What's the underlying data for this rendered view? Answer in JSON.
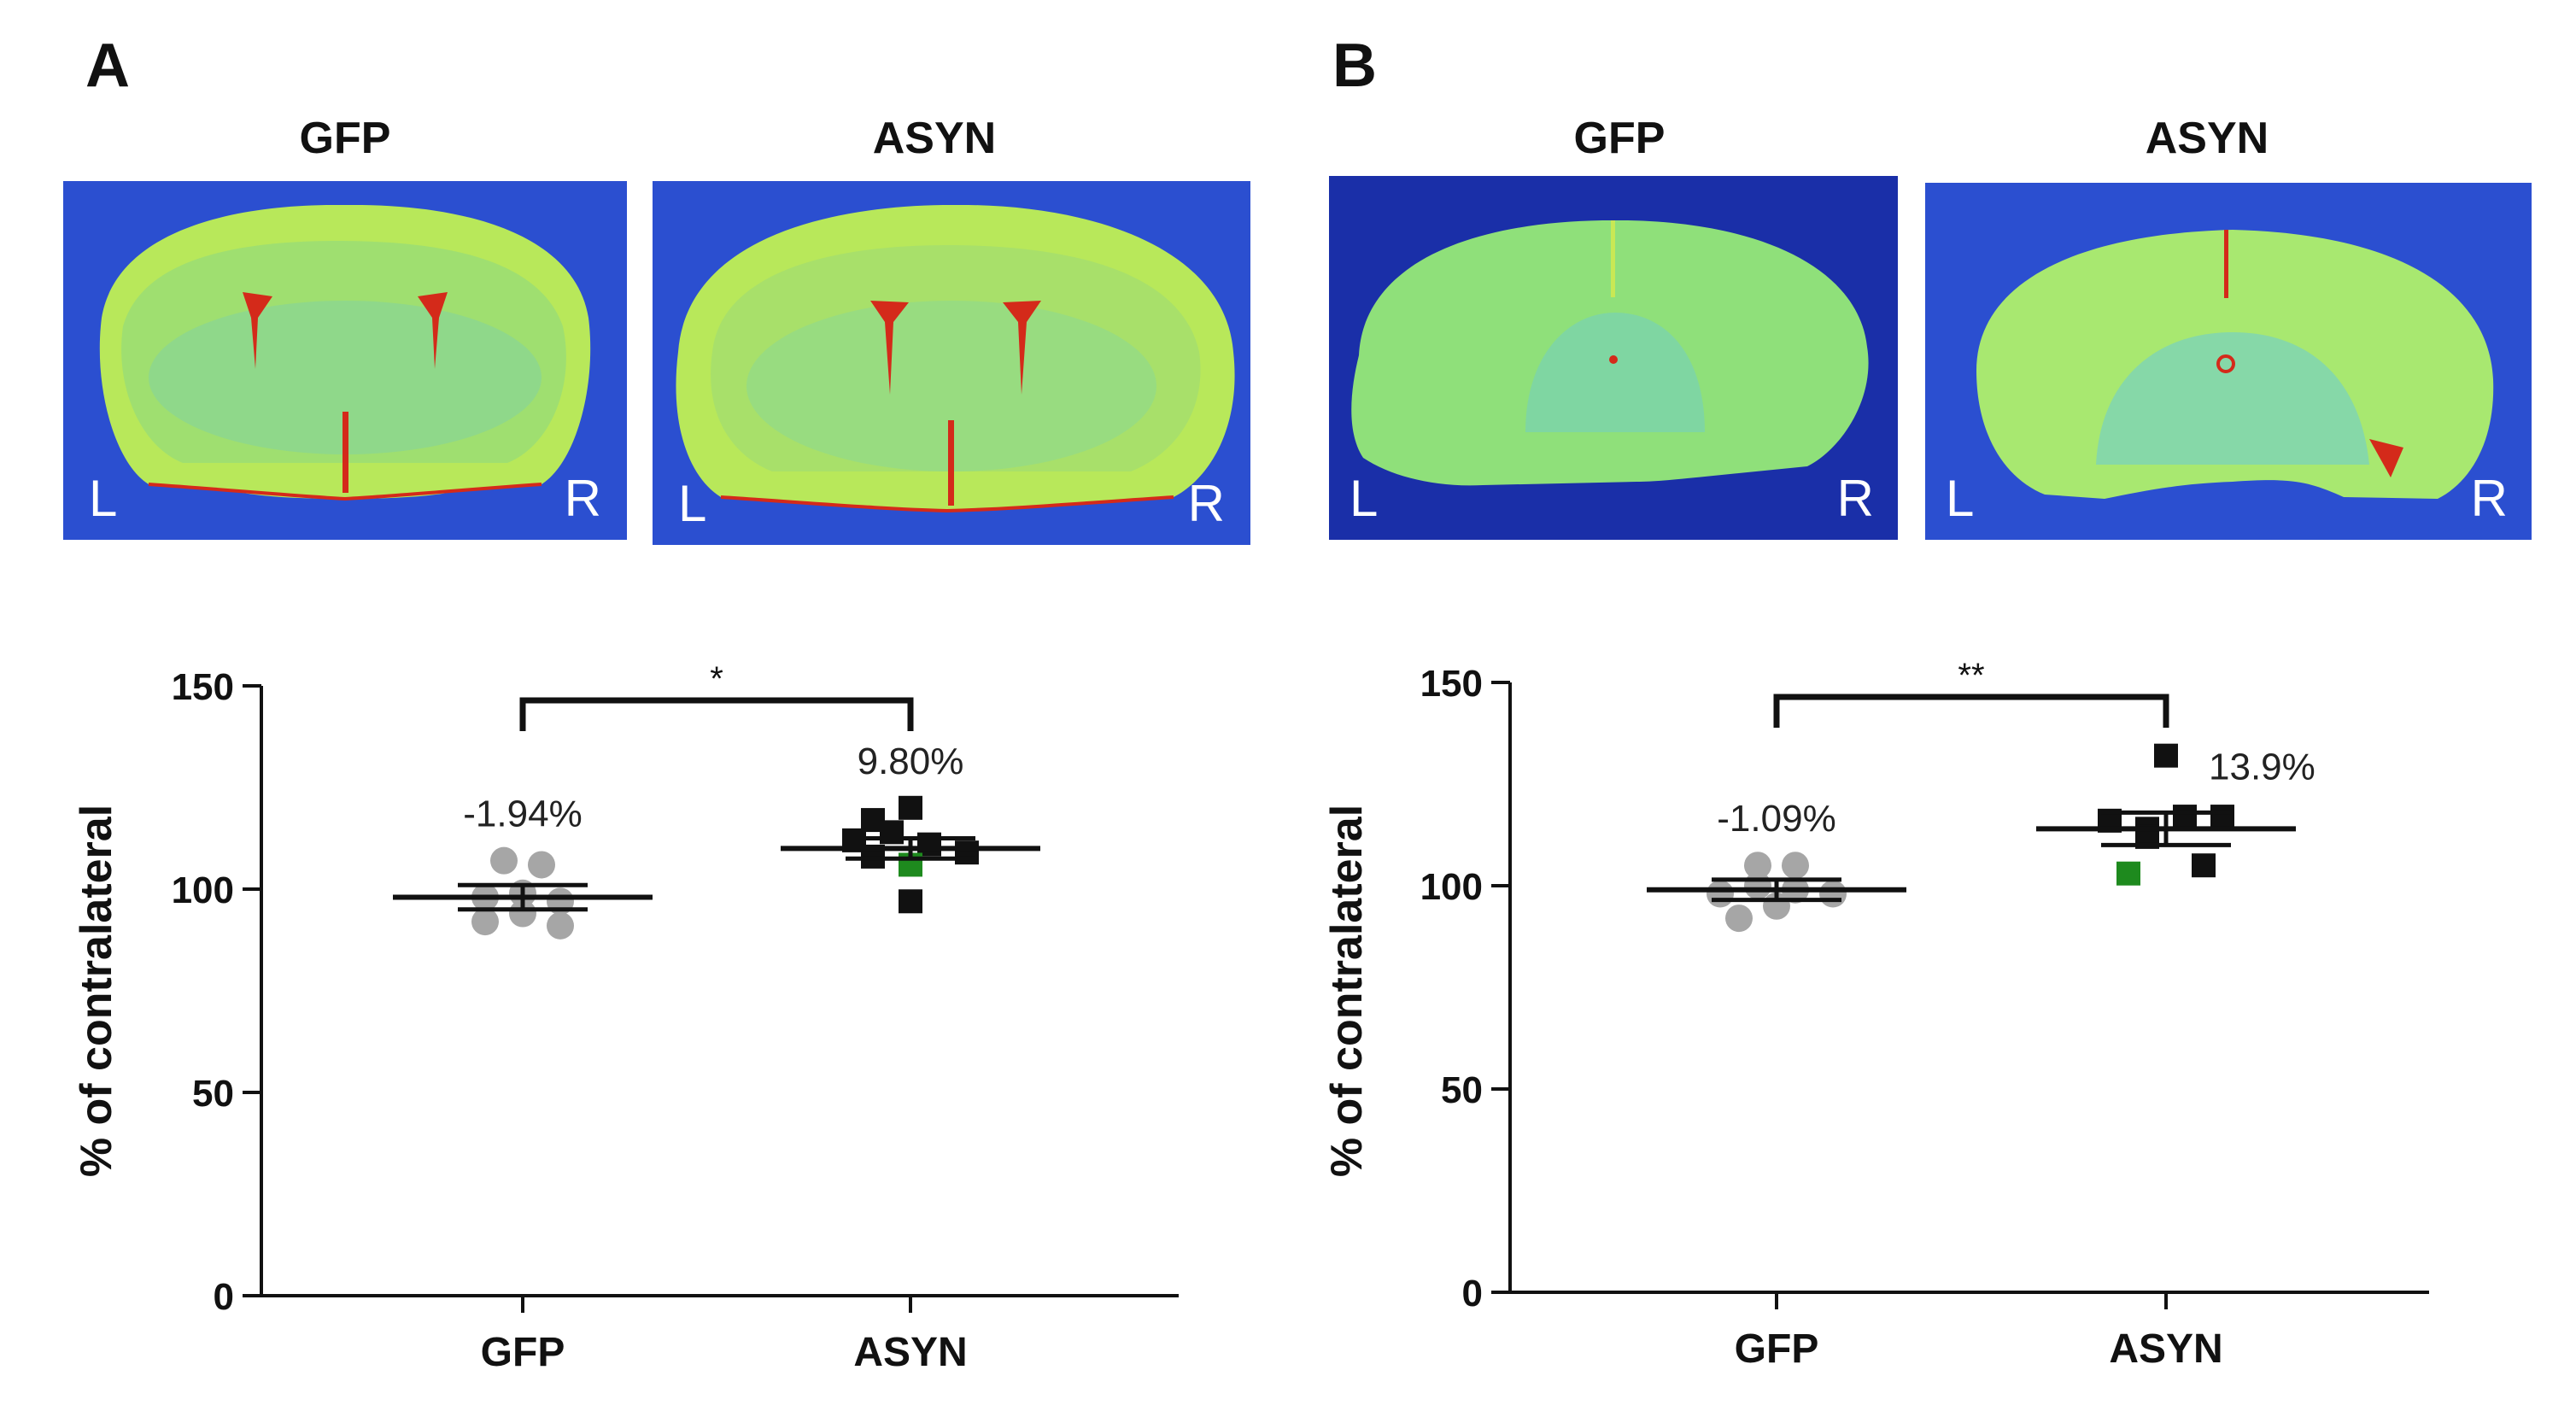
{
  "panels": [
    {
      "letter": "A",
      "image_titles": [
        "GFP",
        "ASYN"
      ],
      "side_labels": {
        "left": "L",
        "right": "R"
      }
    },
    {
      "letter": "B",
      "image_titles": [
        "GFP",
        "ASYN"
      ],
      "side_labels": {
        "left": "L",
        "right": "R"
      }
    }
  ],
  "colors": {
    "gfp_points": "#a6a6a6",
    "asyn_points": "#111111",
    "highlight_point": "#1e8a1e",
    "bg_blue": "#2b4fd0",
    "tissue_green": "#b8e85a",
    "ventricle_red": "#d42a1a"
  },
  "chart_data": [
    {
      "type": "scatter",
      "panel": "A",
      "categories": [
        "GFP",
        "ASYN"
      ],
      "ylabel": "% of contralateral",
      "ylim": [
        0,
        150
      ],
      "yticks": [
        0,
        50,
        100,
        150
      ],
      "significance": "*",
      "series": [
        {
          "name": "GFP",
          "marker": "circle",
          "mean": 98,
          "sem_low": 95,
          "sem_high": 101,
          "label": "-1.94%",
          "points": [
            {
              "dx": -0.5,
              "y": 107
            },
            {
              "dx": 0.5,
              "y": 106
            },
            {
              "dx": -1,
              "y": 98
            },
            {
              "dx": 0,
              "y": 99
            },
            {
              "dx": 1,
              "y": 97
            },
            {
              "dx": -1,
              "y": 92
            },
            {
              "dx": 0,
              "y": 94
            },
            {
              "dx": 1,
              "y": 91
            }
          ]
        },
        {
          "name": "ASYN",
          "marker": "square",
          "mean": 110,
          "sem_low": 107.5,
          "sem_high": 112.5,
          "label": "9.80%",
          "points": [
            {
              "dx": -1,
              "y": 117
            },
            {
              "dx": 0,
              "y": 120
            },
            {
              "dx": -1.5,
              "y": 112
            },
            {
              "dx": -0.5,
              "y": 114
            },
            {
              "dx": 0.5,
              "y": 111
            },
            {
              "dx": 1.5,
              "y": 109
            },
            {
              "dx": -1,
              "y": 108
            },
            {
              "dx": 0,
              "y": 106,
              "highlight": true
            },
            {
              "dx": 0,
              "y": 97
            }
          ]
        }
      ]
    },
    {
      "type": "scatter",
      "panel": "B",
      "categories": [
        "GFP",
        "ASYN"
      ],
      "ylabel": "% of contralateral",
      "ylim": [
        0,
        150
      ],
      "yticks": [
        0,
        50,
        100,
        150
      ],
      "significance": "**",
      "series": [
        {
          "name": "GFP",
          "marker": "circle",
          "mean": 99,
          "sem_low": 96.5,
          "sem_high": 101.5,
          "label": "-1.09%",
          "points": [
            {
              "dx": -0.5,
              "y": 105
            },
            {
              "dx": 0.5,
              "y": 105
            },
            {
              "dx": -1.5,
              "y": 98
            },
            {
              "dx": -0.5,
              "y": 100
            },
            {
              "dx": 0.5,
              "y": 99
            },
            {
              "dx": 1.5,
              "y": 98
            },
            {
              "dx": -1,
              "y": 92
            },
            {
              "dx": 0,
              "y": 95
            }
          ]
        },
        {
          "name": "ASYN",
          "marker": "square",
          "mean": 114,
          "sem_low": 110,
          "sem_high": 118,
          "label": "13.9%",
          "points": [
            {
              "dx": 0,
              "y": 132
            },
            {
              "dx": -1.5,
              "y": 116
            },
            {
              "dx": -0.5,
              "y": 114
            },
            {
              "dx": 0.5,
              "y": 117
            },
            {
              "dx": 1.5,
              "y": 117
            },
            {
              "dx": -0.5,
              "y": 112
            },
            {
              "dx": -1,
              "y": 103,
              "highlight": true
            },
            {
              "dx": 1,
              "y": 105
            }
          ]
        }
      ]
    }
  ]
}
